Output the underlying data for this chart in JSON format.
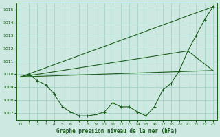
{
  "bg_color": "#cce8e0",
  "grid_color": "#9ecfc4",
  "line_color": "#1a5c1a",
  "title": "Graphe pression niveau de la mer (hPa)",
  "xlim": [
    -0.5,
    23.5
  ],
  "ylim": [
    1006.5,
    1015.5
  ],
  "yticks": [
    1007,
    1008,
    1009,
    1010,
    1011,
    1012,
    1013,
    1014,
    1015
  ],
  "xticks": [
    0,
    1,
    2,
    3,
    4,
    5,
    6,
    7,
    8,
    9,
    10,
    11,
    12,
    13,
    14,
    15,
    16,
    17,
    18,
    19,
    20,
    21,
    22,
    23
  ],
  "line1": {
    "x": [
      0,
      1,
      2,
      3,
      4,
      5,
      6,
      7,
      8,
      9,
      10,
      11,
      12,
      13,
      14,
      15,
      16,
      17,
      18,
      19,
      20,
      21,
      22,
      23
    ],
    "y": [
      1009.8,
      1010.0,
      1009.5,
      1009.2,
      1008.5,
      1007.5,
      1007.1,
      1006.8,
      1006.8,
      1006.9,
      1007.1,
      1007.8,
      1007.5,
      1007.5,
      1007.1,
      1006.8,
      1007.5,
      1008.8,
      1009.3,
      1010.3,
      1011.8,
      1013.0,
      1014.2,
      1015.2
    ]
  },
  "line2": {
    "x": [
      0,
      23
    ],
    "y": [
      1009.8,
      1015.2
    ]
  },
  "line3": {
    "x": [
      0,
      23
    ],
    "y": [
      1009.8,
      1010.3
    ]
  },
  "line4": {
    "x": [
      0,
      20,
      23
    ],
    "y": [
      1009.8,
      1011.8,
      1010.3
    ]
  },
  "figsize": [
    3.2,
    2.0
  ],
  "dpi": 100
}
